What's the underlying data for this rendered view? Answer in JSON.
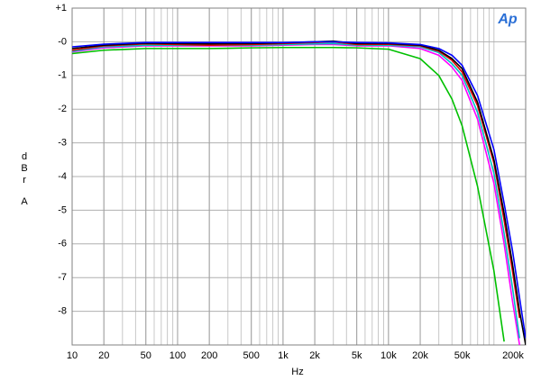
{
  "chart_data": {
    "type": "line",
    "logo": "Ap",
    "x_label": "Hz",
    "y_label": "dBr",
    "channel": "A",
    "x_scale": "log",
    "grid": true,
    "minor_grid": true,
    "xlim": [
      10,
      200000
    ],
    "ylim": [
      -9,
      1
    ],
    "xticks": [
      10,
      20,
      50,
      100,
      200,
      500,
      {
        "value": 1000,
        "label": "1k"
      },
      {
        "value": 2000,
        "label": "2k"
      },
      {
        "value": 5000,
        "label": "5k"
      },
      {
        "value": 10000,
        "label": "10k"
      },
      {
        "value": 20000,
        "label": "20k"
      },
      {
        "value": 50000,
        "label": "50k"
      },
      {
        "value": 200000,
        "label": "200k"
      }
    ],
    "yticks": [
      {
        "value": 1,
        "label": "+1"
      },
      {
        "value": 0,
        "label": "-0"
      },
      -1,
      -2,
      -3,
      -4,
      -5,
      -6,
      -7,
      -8
    ],
    "x": [
      10,
      20,
      50,
      100,
      200,
      500,
      1000,
      2000,
      3000,
      5000,
      10000,
      20000,
      30000,
      40000,
      50000,
      70000,
      100000,
      125000,
      150000,
      175000,
      200000
    ],
    "series": [
      {
        "color": "#00c000",
        "values": [
          -0.35,
          -0.25,
          -0.2,
          -0.2,
          -0.2,
          -0.18,
          -0.17,
          -0.17,
          -0.17,
          -0.18,
          -0.22,
          -0.5,
          -1.0,
          -1.7,
          -2.5,
          -4.3,
          -6.8,
          -8.9,
          null,
          null,
          null
        ]
      },
      {
        "color": "#ff00ff",
        "values": [
          -0.3,
          -0.18,
          -0.12,
          -0.12,
          -0.12,
          -0.12,
          -0.1,
          -0.08,
          -0.08,
          -0.12,
          -0.12,
          -0.2,
          -0.4,
          -0.75,
          -1.15,
          -2.3,
          -4.2,
          -6.0,
          -7.7,
          -9.0,
          null
        ]
      },
      {
        "color": "#00c0c0",
        "values": [
          -0.28,
          -0.15,
          -0.1,
          -0.1,
          -0.1,
          -0.1,
          -0.08,
          -0.06,
          -0.05,
          -0.1,
          -0.1,
          -0.15,
          -0.32,
          -0.65,
          -1.0,
          -2.1,
          -3.9,
          -5.7,
          -7.3,
          -8.8,
          null
        ]
      },
      {
        "color": "#e00000",
        "values": [
          -0.25,
          -0.12,
          -0.06,
          -0.08,
          -0.1,
          -0.08,
          -0.05,
          -0.02,
          0,
          -0.08,
          -0.07,
          -0.12,
          -0.28,
          -0.55,
          -0.9,
          -1.9,
          -3.6,
          -5.3,
          -6.8,
          -8.2,
          null
        ]
      },
      {
        "color": "#000000",
        "values": [
          -0.2,
          -0.1,
          -0.04,
          -0.05,
          -0.06,
          -0.05,
          -0.03,
          0,
          0.02,
          -0.05,
          -0.05,
          -0.1,
          -0.25,
          -0.5,
          -0.8,
          -1.8,
          -3.5,
          -5.1,
          -6.6,
          -8.0,
          -9.0
        ]
      },
      {
        "color": "#0000ff",
        "values": [
          -0.15,
          -0.07,
          -0.02,
          -0.02,
          -0.02,
          -0.02,
          -0.02,
          0,
          0,
          -0.02,
          -0.03,
          -0.08,
          -0.2,
          -0.4,
          -0.7,
          -1.6,
          -3.2,
          -4.8,
          -6.2,
          -7.6,
          -8.8
        ]
      }
    ]
  }
}
